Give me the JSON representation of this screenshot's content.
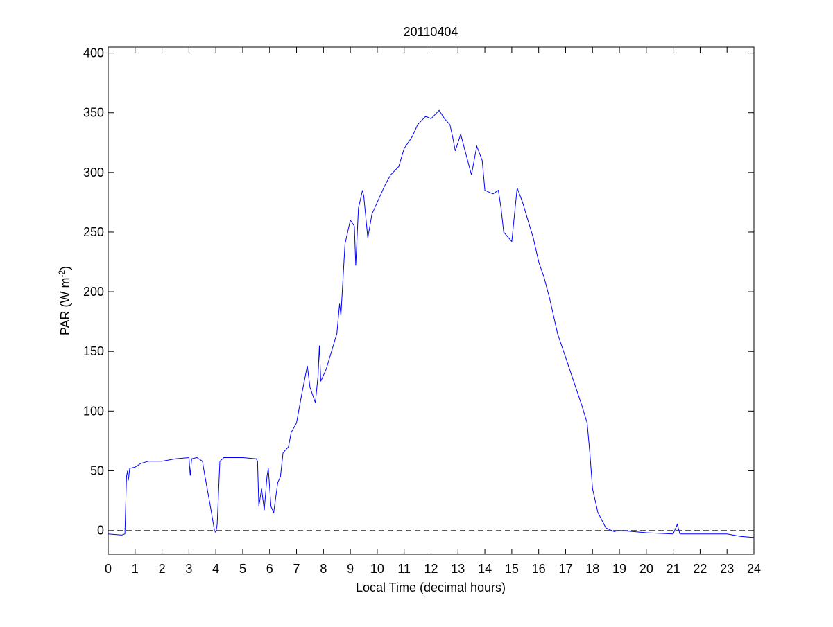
{
  "chart_data": {
    "type": "line",
    "title": "20110404",
    "x_label": "Local Time (decimal hours)",
    "y_label_parts": [
      "PAR (W m",
      "-2",
      ")"
    ],
    "xlim": [
      0,
      24
    ],
    "xticks": [
      0,
      1,
      2,
      3,
      4,
      5,
      6,
      7,
      8,
      9,
      10,
      11,
      12,
      13,
      14,
      15,
      16,
      17,
      18,
      19,
      20,
      21,
      22,
      23,
      24
    ],
    "ylim": [
      -20,
      405
    ],
    "yticks": [
      0,
      50,
      100,
      150,
      200,
      250,
      300,
      350,
      400
    ],
    "reference_line": {
      "value": 0,
      "color": "#d62728",
      "style": "dashed"
    },
    "series": [
      {
        "color": "#0000ff",
        "x": [
          0,
          0.5,
          0.62,
          0.68,
          0.72,
          0.75,
          0.8,
          1,
          1.2,
          1.5,
          2,
          2.5,
          3,
          3.05,
          3.1,
          3.3,
          3.5,
          3.6,
          3.8,
          3.95,
          4.0,
          4.05,
          4.15,
          4.3,
          5,
          5.5,
          5.55,
          5.6,
          5.7,
          5.8,
          5.9,
          5.95,
          6.05,
          6.15,
          6.3,
          6.4,
          6.5,
          6.7,
          6.8,
          7,
          7.2,
          7.4,
          7.5,
          7.7,
          7.8,
          7.85,
          7.9,
          8.1,
          8.3,
          8.5,
          8.6,
          8.65,
          8.8,
          9,
          9.15,
          9.2,
          9.3,
          9.45,
          9.5,
          9.65,
          9.8,
          10,
          10.3,
          10.5,
          10.8,
          11,
          11.3,
          11.5,
          11.8,
          12,
          12.3,
          12.5,
          12.7,
          12.8,
          12.9,
          13.1,
          13.3,
          13.5,
          13.7,
          13.9,
          14.0,
          14.3,
          14.5,
          14.6,
          14.7,
          15,
          15.1,
          15.2,
          15.4,
          15.6,
          15.8,
          16.0,
          16.2,
          16.4,
          16.7,
          17,
          17.3,
          17.6,
          17.8,
          17.9,
          18,
          18.2,
          18.5,
          18.8,
          19,
          20,
          21,
          21.15,
          21.25,
          22,
          23,
          23.5,
          24
        ],
        "values": [
          -3,
          -4,
          -3,
          45,
          50,
          42,
          52,
          53,
          56,
          58,
          58,
          60,
          61,
          46,
          60,
          61,
          58,
          45,
          20,
          0,
          -2,
          5,
          58,
          61,
          61,
          60,
          58,
          20,
          35,
          17,
          45,
          52,
          20,
          15,
          40,
          45,
          65,
          70,
          82,
          90,
          115,
          138,
          120,
          107,
          130,
          155,
          125,
          135,
          150,
          165,
          190,
          180,
          240,
          260,
          255,
          222,
          270,
          285,
          280,
          245,
          265,
          275,
          290,
          298,
          305,
          320,
          330,
          340,
          347,
          345,
          352,
          345,
          340,
          330,
          318,
          332,
          315,
          298,
          322,
          310,
          285,
          282,
          285,
          270,
          250,
          242,
          265,
          287,
          275,
          260,
          245,
          225,
          212,
          195,
          165,
          145,
          125,
          105,
          90,
          65,
          35,
          15,
          2,
          -1,
          0,
          -2,
          -3,
          5,
          -3,
          -3,
          -3,
          -5,
          -6
        ]
      }
    ]
  }
}
